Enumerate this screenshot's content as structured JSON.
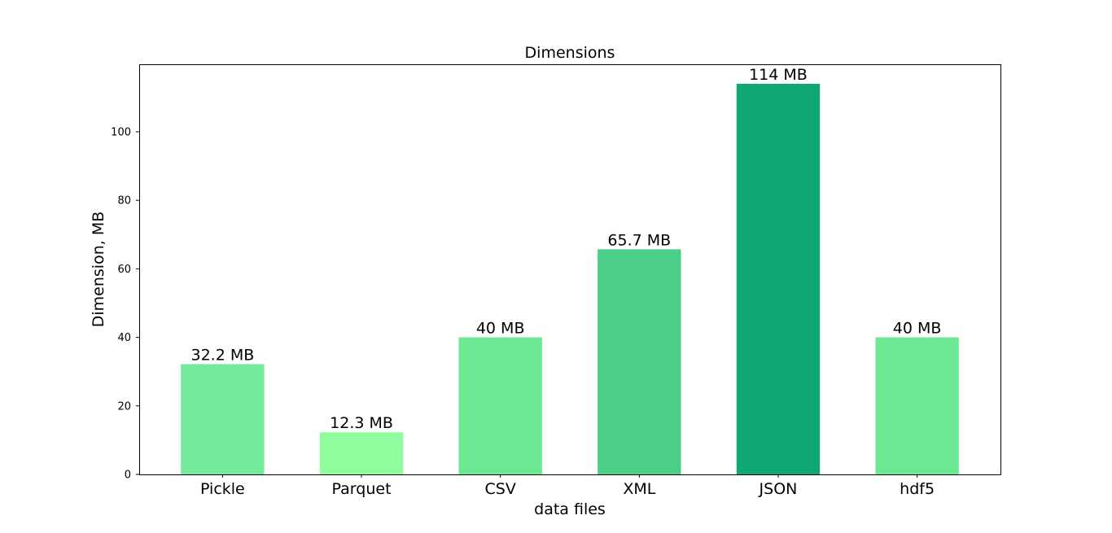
{
  "chart_data": {
    "type": "bar",
    "title": "Dimensions",
    "xlabel": "data files",
    "ylabel": "Dimension, MB",
    "categories": [
      "Pickle",
      "Parquet",
      "CSV",
      "XML",
      "JSON",
      "hdf5"
    ],
    "values": [
      32.2,
      12.3,
      40,
      65.7,
      114,
      40
    ],
    "value_labels": [
      "32.2 MB",
      "12.3 MB",
      "40 MB",
      "65.7 MB",
      "114 MB",
      "40 MB"
    ],
    "colors": [
      "#74eb9b",
      "#8ffd9d",
      "#6de892",
      "#4bcf88",
      "#0fa874",
      "#6de892"
    ],
    "ylim": [
      0,
      119.7
    ],
    "yticks": [
      0,
      20,
      40,
      60,
      80,
      100
    ],
    "grid": false,
    "legend": "none"
  }
}
